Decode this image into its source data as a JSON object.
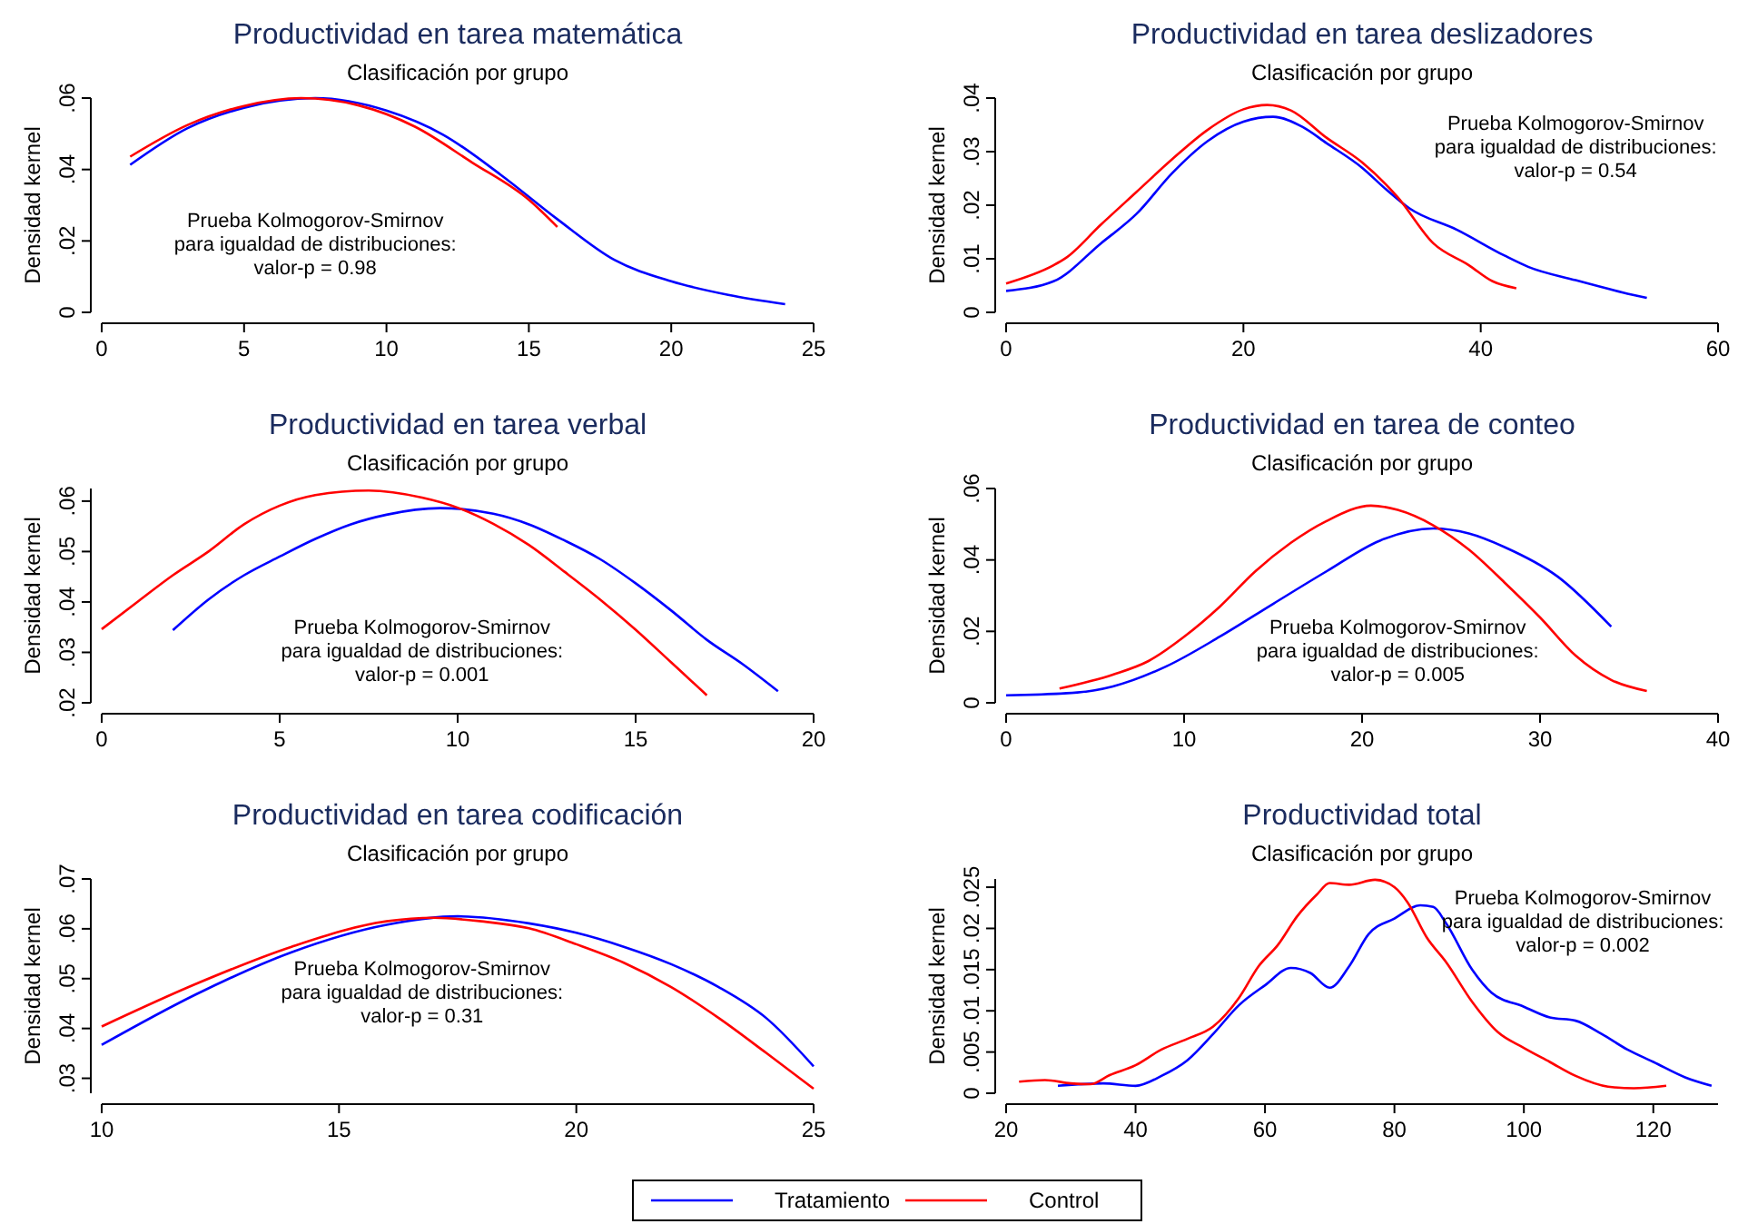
{
  "chart_data": [
    {
      "type": "line",
      "title": "Productividad en tarea matemática",
      "subtitle": "Clasificación por grupo",
      "ylabel": "Densidad kernel",
      "xlim": [
        0,
        25
      ],
      "ylim": [
        0,
        0.06
      ],
      "xticks": [
        0,
        5,
        10,
        15,
        20,
        25
      ],
      "yticks": [
        {
          "value": 0,
          "label": "0"
        },
        {
          "value": 0.02,
          "label": ".02"
        },
        {
          "value": 0.04,
          "label": ".04"
        },
        {
          "value": 0.06,
          "label": ".06"
        }
      ],
      "legend": "bottom",
      "annotations": [
        "Prueba Kolmogorov-Smirnov\npara igualdad de distribuciones:\nvalor-p = 0.98"
      ],
      "series": [
        {
          "name": "Tratamiento",
          "color": "#0000ff",
          "x": [
            1,
            3,
            5,
            7.5,
            10,
            12,
            14,
            16,
            18,
            20,
            22,
            24
          ],
          "values": [
            0.0413,
            0.0515,
            0.0573,
            0.06,
            0.0565,
            0.0497,
            0.0386,
            0.0261,
            0.0147,
            0.0087,
            0.0049,
            0.0023
          ]
        },
        {
          "name": "Control",
          "color": "#ff0000",
          "x": [
            1,
            3,
            5,
            7,
            9,
            11,
            13,
            15,
            16
          ],
          "values": [
            0.0436,
            0.0524,
            0.0578,
            0.06,
            0.058,
            0.052,
            0.042,
            0.0315,
            0.0239
          ]
        }
      ]
    },
    {
      "type": "line",
      "title": "Productividad en tarea deslizadores",
      "subtitle": "Clasificación por grupo",
      "ylabel": "Densidad kernel",
      "xlim": [
        0,
        60
      ],
      "ylim": [
        0,
        0.04
      ],
      "xticks": [
        0,
        20,
        40,
        60
      ],
      "yticks": [
        {
          "value": 0,
          "label": "0"
        },
        {
          "value": 0.01,
          "label": ".01"
        },
        {
          "value": 0.02,
          "label": ".02"
        },
        {
          "value": 0.03,
          "label": ".03"
        },
        {
          "value": 0.04,
          "label": ".04"
        }
      ],
      "legend": "bottom",
      "annotations": [
        "Prueba Kolmogorov-Smirnov\npara igualdad de distribuciones:\nvalor-p = 0.54"
      ],
      "series": [
        {
          "name": "Tratamiento",
          "color": "#0000ff",
          "x": [
            0,
            4,
            8,
            11,
            14,
            17,
            20,
            22.5,
            25,
            27,
            30,
            32,
            34,
            38,
            42,
            44,
            48,
            52,
            54
          ],
          "values": [
            0.004,
            0.0058,
            0.0129,
            0.0184,
            0.026,
            0.032,
            0.0356,
            0.0365,
            0.0346,
            0.0316,
            0.027,
            0.023,
            0.0194,
            0.0154,
            0.0106,
            0.0085,
            0.006,
            0.0037,
            0.0027
          ]
        },
        {
          "name": "Control",
          "color": "#ff0000",
          "x": [
            0,
            4,
            5,
            8,
            11,
            14,
            17,
            20,
            22,
            24,
            27,
            30,
            33,
            36,
            39,
            41,
            43
          ],
          "values": [
            0.0054,
            0.0088,
            0.0101,
            0.0164,
            0.0225,
            0.0286,
            0.0341,
            0.0379,
            0.0387,
            0.0377,
            0.0326,
            0.028,
            0.0215,
            0.0129,
            0.0088,
            0.0058,
            0.0045
          ]
        }
      ]
    },
    {
      "type": "line",
      "title": "Productividad en tarea verbal",
      "subtitle": "Clasificación por grupo",
      "ylabel": "Densidad kernel",
      "xlim": [
        0,
        20
      ],
      "ylim": [
        0.02,
        0.0625
      ],
      "xticks": [
        0,
        5,
        10,
        15,
        20
      ],
      "yticks": [
        {
          "value": 0.02,
          "label": ".02"
        },
        {
          "value": 0.03,
          "label": ".03"
        },
        {
          "value": 0.04,
          "label": ".04"
        },
        {
          "value": 0.05,
          "label": ".05"
        },
        {
          "value": 0.06,
          "label": ".06"
        }
      ],
      "legend": "bottom",
      "annotations": [
        "Prueba Kolmogorov-Smirnov\npara igualdad de distribuciones:\nvalor-p = 0.001"
      ],
      "series": [
        {
          "name": "Tratamiento",
          "color": "#0000ff",
          "x": [
            2,
            3,
            4,
            5,
            6,
            7,
            8,
            9.5,
            11,
            12,
            13,
            14,
            15,
            16,
            17,
            18,
            19
          ],
          "values": [
            0.0344,
            0.0405,
            0.0453,
            0.049,
            0.0525,
            0.0554,
            0.0573,
            0.0586,
            0.0575,
            0.0554,
            0.0522,
            0.0485,
            0.0437,
            0.0383,
            0.0325,
            0.0277,
            0.0223
          ]
        },
        {
          "name": "Control",
          "color": "#ff0000",
          "x": [
            0,
            1,
            2,
            3,
            4,
            5,
            6,
            7.5,
            9,
            10,
            11,
            12,
            13,
            14,
            15,
            16,
            17
          ],
          "values": [
            0.0346,
            0.04,
            0.0453,
            0.05,
            0.0554,
            0.0591,
            0.0612,
            0.0621,
            0.0607,
            0.0587,
            0.0555,
            0.0513,
            0.046,
            0.0405,
            0.0345,
            0.028,
            0.0215
          ]
        }
      ]
    },
    {
      "type": "line",
      "title": "Productividad en tarea de conteo",
      "subtitle": "Clasificación por grupo",
      "ylabel": "Densidad kernel",
      "xlim": [
        0,
        40
      ],
      "ylim": [
        0,
        0.06
      ],
      "xticks": [
        0,
        10,
        20,
        30,
        40
      ],
      "yticks": [
        {
          "value": 0,
          "label": "0"
        },
        {
          "value": 0.02,
          "label": ".02"
        },
        {
          "value": 0.04,
          "label": ".04"
        },
        {
          "value": 0.06,
          "label": ".06"
        }
      ],
      "legend": "bottom",
      "annotations": [
        "Prueba Kolmogorov-Smirnov\npara igualdad de distribuciones:\nvalor-p = 0.005"
      ],
      "series": [
        {
          "name": "Tratamiento",
          "color": "#0000ff",
          "x": [
            0,
            4,
            6,
            9,
            12,
            15,
            18,
            21,
            24,
            26,
            28,
            31,
            34
          ],
          "values": [
            0.0021,
            0.0029,
            0.0046,
            0.0102,
            0.0185,
            0.0277,
            0.0368,
            0.0454,
            0.0488,
            0.0474,
            0.0436,
            0.0353,
            0.0213
          ]
        },
        {
          "name": "Control",
          "color": "#ff0000",
          "x": [
            3,
            6,
            8,
            10,
            12,
            14,
            16,
            18,
            20.5,
            22,
            24,
            26,
            28,
            30,
            32,
            34,
            36
          ],
          "values": [
            0.004,
            0.0079,
            0.0117,
            0.0185,
            0.0269,
            0.0368,
            0.0448,
            0.0509,
            0.0552,
            0.054,
            0.0497,
            0.0429,
            0.0337,
            0.0239,
            0.0132,
            0.0064,
            0.0033
          ]
        }
      ]
    },
    {
      "type": "line",
      "title": "Productividad en tarea codificación",
      "subtitle": "Clasificación por grupo",
      "ylabel": "Densidad kernel",
      "xlim": [
        10,
        25
      ],
      "ylim": [
        0.027,
        0.07
      ],
      "xticks": [
        10,
        15,
        20,
        25
      ],
      "yticks": [
        {
          "value": 0.03,
          "label": ".03"
        },
        {
          "value": 0.04,
          "label": ".04"
        },
        {
          "value": 0.05,
          "label": ".05"
        },
        {
          "value": 0.06,
          "label": ".06"
        },
        {
          "value": 0.07,
          "label": ".07"
        }
      ],
      "legend": "bottom",
      "annotations": [
        "Prueba Kolmogorov-Smirnov\npara igualdad de distribuciones:\nvalor-p = 0.31"
      ],
      "series": [
        {
          "name": "Tratamiento",
          "color": "#0000ff",
          "x": [
            10,
            12,
            14,
            16,
            17.5,
            19,
            20,
            21,
            22,
            23,
            24,
            25
          ],
          "values": [
            0.0367,
            0.0469,
            0.0553,
            0.0608,
            0.0625,
            0.0611,
            0.0592,
            0.0564,
            0.0529,
            0.0483,
            0.0421,
            0.0324
          ]
        },
        {
          "name": "Control",
          "color": "#ff0000",
          "x": [
            10,
            12,
            14,
            16,
            17,
            18,
            19,
            20,
            21,
            22,
            23,
            24,
            25
          ],
          "values": [
            0.0404,
            0.049,
            0.0564,
            0.0615,
            0.0622,
            0.0615,
            0.0601,
            0.0569,
            0.0532,
            0.0483,
            0.0421,
            0.0351,
            0.0279
          ]
        }
      ]
    },
    {
      "type": "line",
      "title": "Productividad total",
      "subtitle": "Clasificación por grupo",
      "ylabel": "Densidad kernel",
      "xlim": [
        20,
        130
      ],
      "ylim": [
        0,
        0.026
      ],
      "xticks": [
        20,
        40,
        60,
        80,
        100,
        120
      ],
      "yticks": [
        {
          "value": 0,
          "label": "0"
        },
        {
          "value": 0.005,
          "label": ".005"
        },
        {
          "value": 0.01,
          "label": ".01"
        },
        {
          "value": 0.015,
          "label": ".015"
        },
        {
          "value": 0.02,
          "label": ".02"
        },
        {
          "value": 0.025,
          "label": ".025"
        }
      ],
      "legend": "bottom",
      "annotations": [
        "Prueba Kolmogorov-Smirnov\npara igualdad de distribuciones:\nvalor-p = 0.002"
      ],
      "series": [
        {
          "name": "Tratamiento",
          "color": "#0000ff",
          "x": [
            28,
            35,
            40,
            44,
            48,
            52,
            56,
            60,
            64,
            67,
            70,
            73,
            76,
            80,
            84,
            86,
            88,
            92,
            95,
            100,
            104,
            108,
            112,
            116,
            120,
            125,
            129
          ],
          "values": [
            0.0009,
            0.0012,
            0.0009,
            0.0021,
            0.004,
            0.0072,
            0.0107,
            0.0131,
            0.0152,
            0.0146,
            0.0128,
            0.0154,
            0.0193,
            0.0212,
            0.0228,
            0.0226,
            0.0206,
            0.015,
            0.0122,
            0.0105,
            0.0092,
            0.0088,
            0.0072,
            0.0053,
            0.0038,
            0.0019,
            0.0009
          ]
        },
        {
          "name": "Control",
          "color": "#ff0000",
          "x": [
            22,
            26,
            30,
            33,
            36,
            40,
            44,
            48,
            52,
            56,
            59,
            62,
            65,
            68,
            70,
            73,
            77,
            80,
            82,
            85,
            88,
            92,
            96,
            100,
            104,
            108,
            113,
            117,
            122
          ],
          "values": [
            0.0014,
            0.0016,
            0.0012,
            0.0011,
            0.0022,
            0.0034,
            0.0053,
            0.0066,
            0.0081,
            0.0116,
            0.0154,
            0.018,
            0.0215,
            0.0241,
            0.0255,
            0.0253,
            0.0259,
            0.025,
            0.0232,
            0.0189,
            0.0159,
            0.0111,
            0.0074,
            0.0055,
            0.0038,
            0.0021,
            0.0008,
            0.0006,
            0.0009
          ]
        }
      ]
    }
  ]
}
